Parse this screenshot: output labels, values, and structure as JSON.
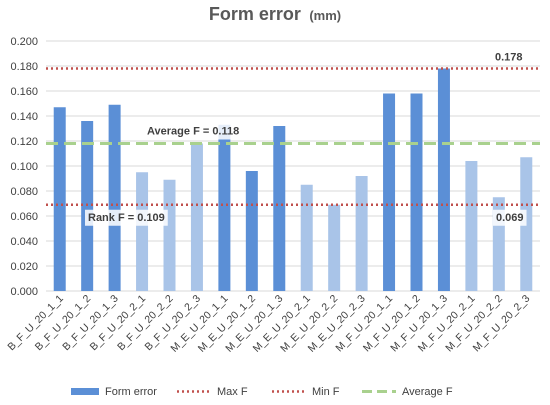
{
  "chart_data": {
    "type": "bar",
    "title": "Form error",
    "title_unit": "(mm)",
    "ylim": [
      0,
      0.2
    ],
    "y_ticks": [
      "0.000",
      "0.020",
      "0.040",
      "0.060",
      "0.080",
      "0.100",
      "0.120",
      "0.140",
      "0.160",
      "0.180",
      "0.200"
    ],
    "categories": [
      "B_F_U_20_1_1",
      "B_F_U_20_1_2",
      "B_F_U_20_1_3",
      "B_F_U_20_2_1",
      "B_F_U_20_2_2",
      "B_F_U_20_2_3",
      "M_E_U_20_1_1",
      "M_E_U_20_1_2",
      "M_E_U_20_1_3",
      "M_E_U_20_2_1",
      "M_E_U_20_2_2",
      "M_E_U_20_2_3",
      "M_F_U_20_1_1",
      "M_F_U_20_1_2",
      "M_F_U_20_1_3",
      "M_F_U_20_2_1",
      "M_F_U_20_2_2",
      "M_F_U_20_2_3"
    ],
    "series": [
      {
        "name": "Form error",
        "values": [
          0.147,
          0.136,
          0.149,
          0.095,
          0.089,
          0.118,
          0.133,
          0.096,
          0.132,
          0.085,
          0.069,
          0.092,
          0.158,
          0.158,
          0.178,
          0.104,
          0.075,
          0.107
        ],
        "shade": [
          "dark",
          "dark",
          "dark",
          "light",
          "light",
          "light",
          "dark",
          "dark",
          "dark",
          "light",
          "light",
          "light",
          "dark",
          "dark",
          "dark",
          "light",
          "light",
          "light"
        ]
      }
    ],
    "reference_lines": [
      {
        "name": "Max F",
        "value": 0.178,
        "style": "dotted",
        "color": "#c0504d"
      },
      {
        "name": "Min F",
        "value": 0.069,
        "style": "dotted",
        "color": "#c0504d"
      },
      {
        "name": "Average F",
        "value": 0.118,
        "style": "dashed",
        "color": "#a9d18e"
      }
    ],
    "annotations": {
      "max_label": "0.178",
      "min_label": "0.069",
      "average_label": "Average F = 0.118",
      "rank_label": "Rank F = 0.109"
    },
    "colors": {
      "dark": "#5b8fd6",
      "light": "#a9c4e8",
      "grid": "#d9d9d9"
    },
    "legend_position": "bottom",
    "grid": true
  }
}
